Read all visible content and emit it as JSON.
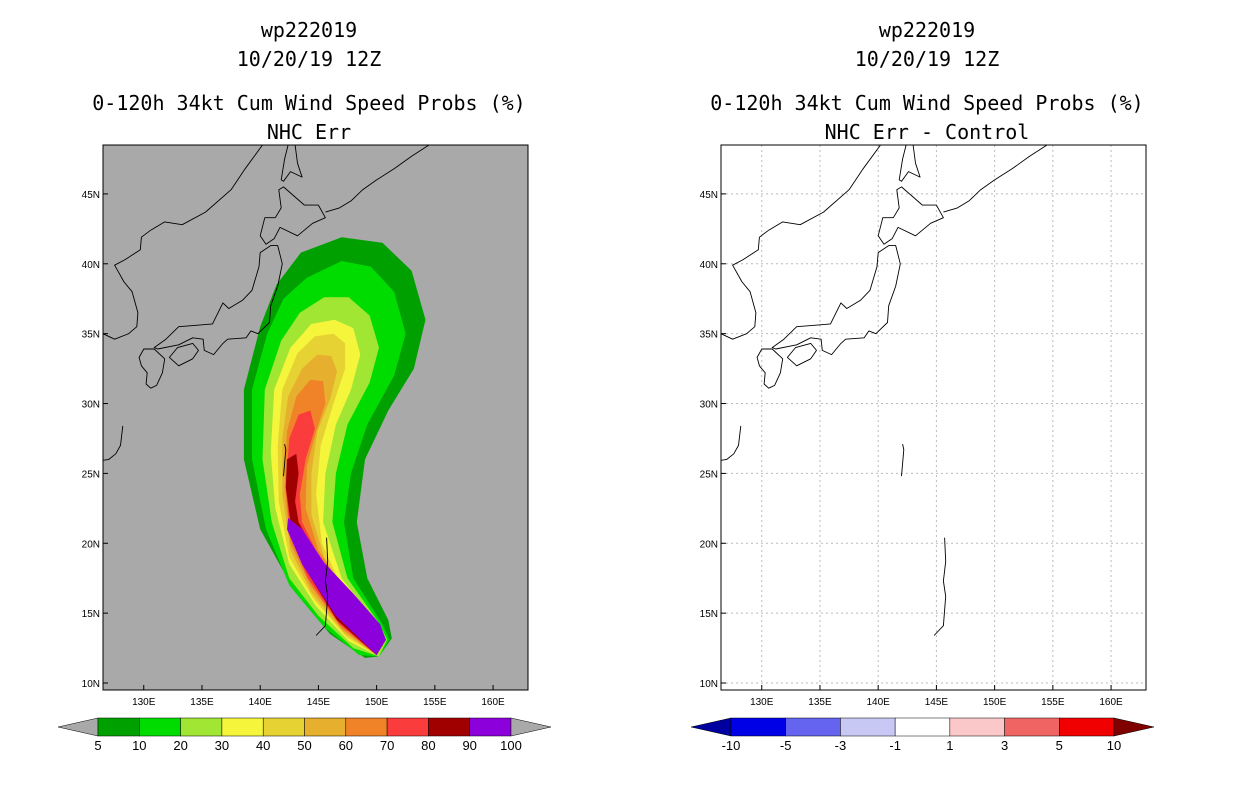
{
  "chart_data": [
    {
      "type": "heatmap",
      "storm_id": "wp222019",
      "datetime": "10/20/19 12Z",
      "title": "0-120h 34kt Cum Wind Speed Probs (%)",
      "subtitle": "NHC Err",
      "x_ticks": [
        "130E",
        "135E",
        "140E",
        "145E",
        "150E",
        "155E",
        "160E"
      ],
      "y_ticks": [
        "10N",
        "15N",
        "20N",
        "25N",
        "30N",
        "35N",
        "40N",
        "45N"
      ],
      "xlim": [
        126.5,
        163
      ],
      "ylim": [
        9.5,
        48.5
      ],
      "grid": false,
      "background": "#a9a9a9",
      "colorbar": {
        "labels": [
          "5",
          "10",
          "20",
          "30",
          "40",
          "50",
          "60",
          "70",
          "80",
          "90",
          "100"
        ],
        "colors": [
          "#00a000",
          "#00dc00",
          "#a0e632",
          "#f5f53c",
          "#e6d232",
          "#e6af2d",
          "#f08228",
          "#fa3c3c",
          "#a00000",
          "#8c00dc"
        ],
        "under_color": "#a9a9a9",
        "over_color": "#a9a9a9"
      },
      "levels": [
        5,
        10,
        20,
        30,
        40,
        50,
        60,
        70,
        80,
        90
      ]
    },
    {
      "type": "heatmap",
      "storm_id": "wp222019",
      "datetime": "10/20/19 12Z",
      "title": "0-120h 34kt Cum Wind Speed Probs (%)",
      "subtitle": "NHC Err - Control",
      "x_ticks": [
        "130E",
        "135E",
        "140E",
        "145E",
        "150E",
        "155E",
        "160E"
      ],
      "y_ticks": [
        "10N",
        "15N",
        "20N",
        "25N",
        "30N",
        "35N",
        "40N",
        "45N"
      ],
      "xlim": [
        126.5,
        163
      ],
      "ylim": [
        9.5,
        48.5
      ],
      "grid": true,
      "background": "#ffffff",
      "colorbar": {
        "labels": [
          "-10",
          "-5",
          "-3",
          "-1",
          "1",
          "3",
          "5",
          "10"
        ],
        "colors": [
          "#0000e6",
          "#6464f0",
          "#c8c8f5",
          "#ffffff",
          "#fac8c8",
          "#f06464",
          "#f00000"
        ],
        "under_color": "#0000a0",
        "over_color": "#800000"
      }
    }
  ]
}
